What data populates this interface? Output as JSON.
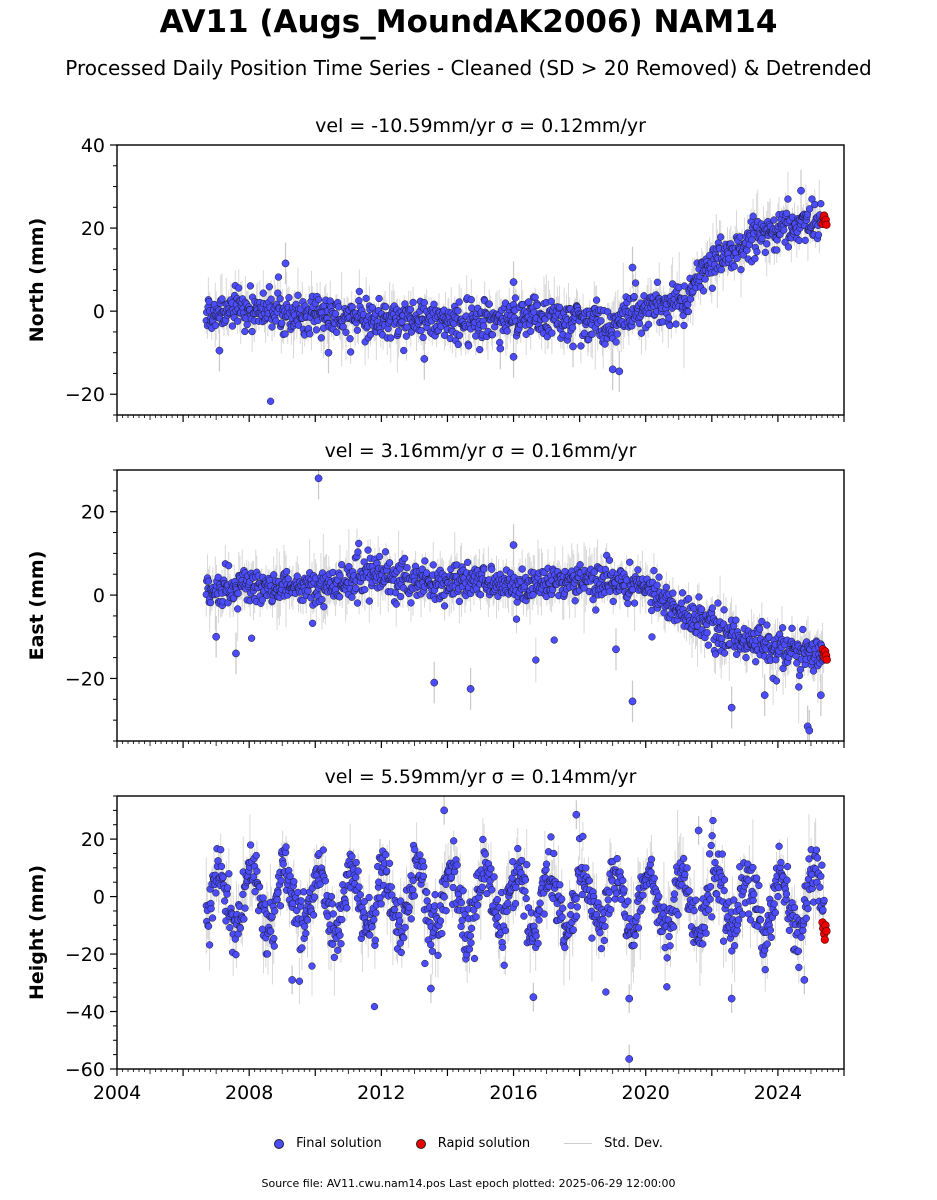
{
  "title": "AV11 (Augs_MoundAK2006) NAM14",
  "subtitle": "Processed Daily Position Time Series - Cleaned (SD > 20 Removed) & Detrended",
  "legend": {
    "final": "Final solution",
    "rapid": "Rapid solution",
    "std": "Std. Dev."
  },
  "colors": {
    "final": "#4b4bff",
    "rapid": "#ee0000",
    "std": "#c8c8c8",
    "edge": "#1a1a1a"
  },
  "footer": "Source file: AV11.cwu.nam14.pos  Last epoch plotted: 2025-06-29 12:00:00",
  "chart_data": [
    {
      "type": "scatter",
      "panel": "north",
      "title": "vel = -10.59mm/yr   σ = 0.12mm/yr",
      "ylabel": "North (mm)",
      "xlim": [
        2004,
        2026
      ],
      "ylim": [
        -25,
        40
      ],
      "yticks": [
        -20,
        0,
        20,
        40
      ],
      "ytick_labels": [
        "−20",
        "0",
        "20",
        "40"
      ],
      "trend_knots": [
        [
          2006.7,
          0
        ],
        [
          2008,
          0.5
        ],
        [
          2010,
          -1
        ],
        [
          2012,
          -2.5
        ],
        [
          2014,
          -2
        ],
        [
          2016,
          -1.5
        ],
        [
          2018,
          -2
        ],
        [
          2019,
          -3.5
        ],
        [
          2020,
          1
        ],
        [
          2021.2,
          2.5
        ],
        [
          2021.9,
          12
        ],
        [
          2023,
          16
        ],
        [
          2024,
          19.5
        ],
        [
          2025.3,
          22
        ]
      ],
      "scatter_sd": 2.2,
      "outliers": [
        [
          2009.1,
          11.5
        ],
        [
          2010.4,
          -10
        ],
        [
          2013.3,
          -11.5
        ],
        [
          2015.6,
          -9
        ],
        [
          2016.0,
          -11
        ],
        [
          2016.0,
          7
        ],
        [
          2019.0,
          -14
        ],
        [
          2019.2,
          -14.5
        ],
        [
          2019.6,
          10.5
        ],
        [
          2007.1,
          -9.5
        ],
        [
          2017.8,
          -8.5
        ],
        [
          2024.7,
          29
        ]
      ],
      "rapid": [
        [
          2025.35,
          21
        ],
        [
          2025.38,
          22.5
        ],
        [
          2025.4,
          23
        ],
        [
          2025.42,
          21.5
        ],
        [
          2025.45,
          22
        ],
        [
          2025.47,
          20.8
        ]
      ]
    },
    {
      "type": "scatter",
      "panel": "east",
      "title": "vel = 3.16mm/yr   σ = 0.16mm/yr",
      "ylabel": "East (mm)",
      "xlim": [
        2004,
        2026
      ],
      "ylim": [
        -35,
        30
      ],
      "yticks": [
        -20,
        0,
        20
      ],
      "ytick_labels": [
        "−20",
        "0",
        "20"
      ],
      "trend_knots": [
        [
          2006.7,
          1
        ],
        [
          2008,
          2
        ],
        [
          2010,
          2
        ],
        [
          2012,
          5
        ],
        [
          2014,
          3
        ],
        [
          2016,
          2
        ],
        [
          2018,
          4
        ],
        [
          2020,
          2.5
        ],
        [
          2021,
          -4
        ],
        [
          2022,
          -8
        ],
        [
          2023,
          -11
        ],
        [
          2024,
          -13
        ],
        [
          2025.4,
          -14.5
        ]
      ],
      "scatter_sd": 2.2,
      "outliers": [
        [
          2010.1,
          28
        ],
        [
          2007.0,
          -10
        ],
        [
          2007.6,
          -14
        ],
        [
          2013.6,
          -21
        ],
        [
          2014.7,
          -22.5
        ],
        [
          2016.0,
          12
        ],
        [
          2019.1,
          -13
        ],
        [
          2019.6,
          -25.5
        ],
        [
          2022.6,
          -27
        ],
        [
          2024.9,
          -31.5
        ],
        [
          2024.95,
          -32.5
        ],
        [
          2023.6,
          -24
        ],
        [
          2025.3,
          -24
        ]
      ],
      "rapid": [
        [
          2025.36,
          -13
        ],
        [
          2025.39,
          -14
        ],
        [
          2025.41,
          -15
        ],
        [
          2025.43,
          -13.5
        ],
        [
          2025.46,
          -14.5
        ],
        [
          2025.48,
          -15.5
        ]
      ]
    },
    {
      "type": "scatter",
      "panel": "height",
      "title": "vel = 5.59mm/yr   σ = 0.14mm/yr",
      "ylabel": "Height (mm)",
      "xlim": [
        2004,
        2026
      ],
      "ylim": [
        -60,
        35
      ],
      "yticks": [
        -60,
        -40,
        -20,
        0,
        20
      ],
      "ytick_labels": [
        "−60",
        "−40",
        "−20",
        "0",
        "20"
      ],
      "xticks": [
        2004,
        2008,
        2012,
        2016,
        2020,
        2024
      ],
      "xtick_labels": [
        "2004",
        "2008",
        "2012",
        "2016",
        "2020",
        "2024"
      ],
      "trend_knots": [
        [
          2006.7,
          -1
        ],
        [
          2025.4,
          -2
        ]
      ],
      "seasonal_amplitude": 10,
      "scatter_sd": 5,
      "outliers": [
        [
          2013.9,
          30
        ],
        [
          2019.5,
          -56.5
        ],
        [
          2013.5,
          -32
        ],
        [
          2016.6,
          -35
        ],
        [
          2019.5,
          -35.5
        ],
        [
          2021.6,
          23
        ],
        [
          2017.9,
          28.5
        ],
        [
          2009.3,
          -29
        ],
        [
          2022.6,
          -35.5
        ],
        [
          2024.8,
          -29
        ]
      ],
      "rapid": [
        [
          2025.35,
          -9
        ],
        [
          2025.37,
          -11
        ],
        [
          2025.4,
          -13
        ],
        [
          2025.42,
          -15
        ],
        [
          2025.44,
          -10
        ],
        [
          2025.47,
          -12
        ]
      ]
    }
  ]
}
